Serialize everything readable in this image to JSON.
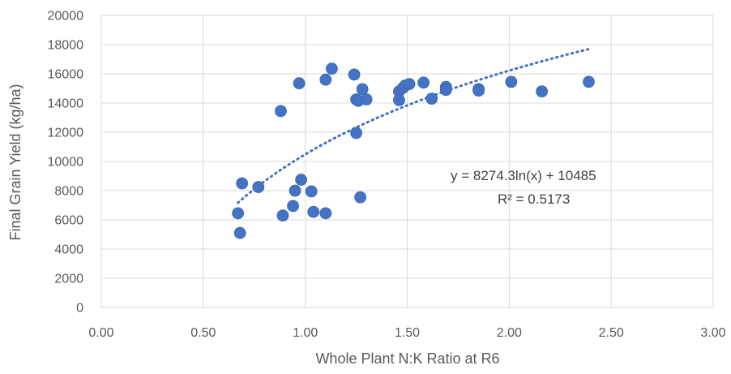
{
  "chart_data": {
    "type": "scatter",
    "xlabel": "Whole Plant N:K Ratio at R6",
    "ylabel": "Final Grain Yield (kg/ha)",
    "xlim": [
      0,
      3
    ],
    "ylim": [
      0,
      20000
    ],
    "x_ticks": [
      "0.00",
      "0.50",
      "1.00",
      "1.50",
      "2.00",
      "2.50",
      "3.00"
    ],
    "y_ticks": [
      "0",
      "2000",
      "4000",
      "6000",
      "8000",
      "10000",
      "12000",
      "14000",
      "16000",
      "18000",
      "20000"
    ],
    "grid": "major both",
    "marker_color": "#4472C4",
    "series": [
      {
        "points": [
          [
            0.67,
            6450
          ],
          [
            0.68,
            5100
          ],
          [
            0.69,
            8500
          ],
          [
            0.77,
            8250
          ],
          [
            0.88,
            13450
          ],
          [
            0.89,
            6300
          ],
          [
            0.94,
            6950
          ],
          [
            0.95,
            8000
          ],
          [
            0.97,
            15350
          ],
          [
            0.98,
            8750
          ],
          [
            1.03,
            7950
          ],
          [
            1.04,
            6550
          ],
          [
            1.1,
            6450
          ],
          [
            1.1,
            15600
          ],
          [
            1.13,
            16350
          ],
          [
            1.24,
            15950
          ],
          [
            1.25,
            14250
          ],
          [
            1.25,
            11950
          ],
          [
            1.26,
            14150
          ],
          [
            1.27,
            7550
          ],
          [
            1.28,
            14950
          ],
          [
            1.3,
            14250
          ],
          [
            1.46,
            14800
          ],
          [
            1.46,
            14200
          ],
          [
            1.48,
            15050
          ],
          [
            1.49,
            15200
          ],
          [
            1.51,
            15300
          ],
          [
            1.58,
            15400
          ],
          [
            1.62,
            14300
          ],
          [
            1.69,
            15100
          ],
          [
            1.69,
            14900
          ],
          [
            1.85,
            14950
          ],
          [
            1.85,
            14850
          ],
          [
            2.01,
            15450
          ],
          [
            2.16,
            14800
          ],
          [
            2.39,
            15450
          ]
        ]
      }
    ],
    "trendline": {
      "type": "logarithmic",
      "a": 8274.3,
      "b": 10485,
      "x_from": 0.67,
      "x_to": 2.39,
      "style": "dotted",
      "color": "#4472C4"
    },
    "annotations": {
      "equation": "y = 8274.3ln(x) + 10485",
      "r_squared": "R² = 0.5173"
    }
  }
}
